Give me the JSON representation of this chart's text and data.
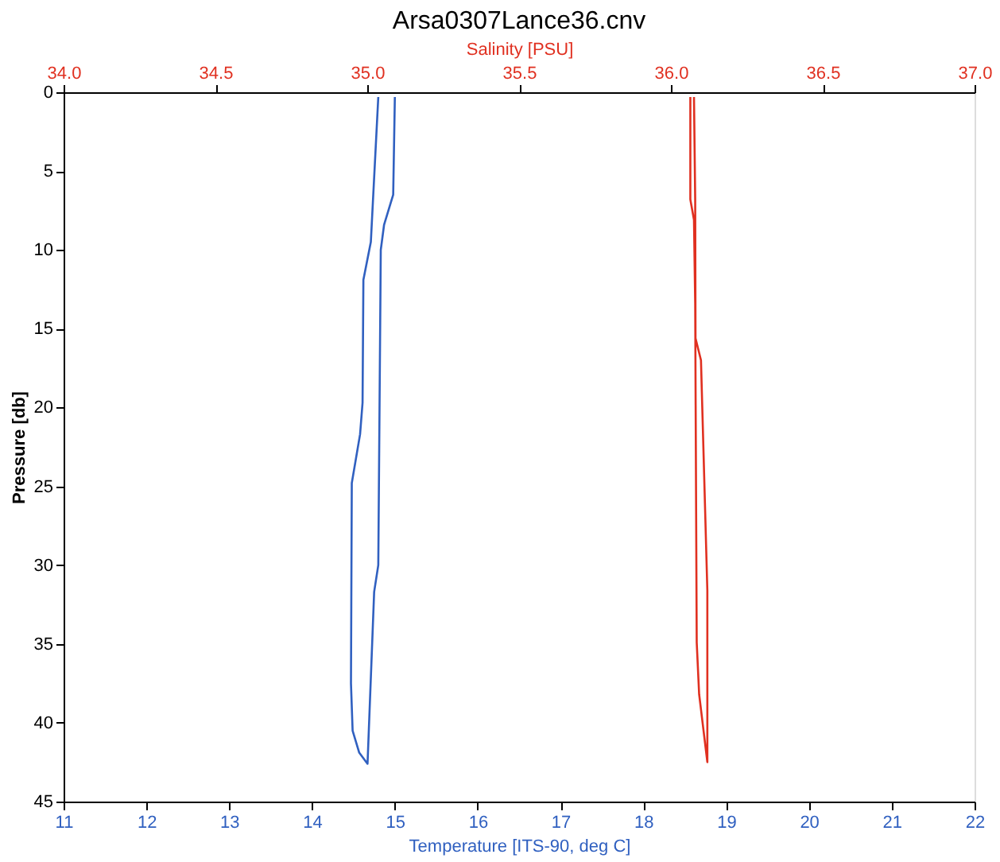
{
  "chart_data": {
    "type": "line",
    "title": "Arsa0307Lance36.cnv",
    "xlabel": "Temperature [ITS-90, deg C]",
    "x2label": "Salinity [PSU]",
    "ylabel": "Pressure [db]",
    "xlim": [
      11,
      22
    ],
    "xticks": [
      11,
      12,
      13,
      14,
      15,
      16,
      17,
      18,
      19,
      20,
      21,
      22
    ],
    "x2lim": [
      34.0,
      37.0
    ],
    "x2ticks": [
      {
        "value": 34.0,
        "label": "34.0"
      },
      34.5,
      {
        "value": 35.0,
        "label": "35.0"
      },
      35.5,
      {
        "value": 36.0,
        "label": "36.0"
      },
      36.5,
      {
        "value": 37.0,
        "label": "37.0"
      }
    ],
    "ylim": [
      45,
      0
    ],
    "yticks": [
      0,
      5,
      10,
      15,
      20,
      25,
      30,
      35,
      40,
      45
    ],
    "grid": false,
    "marker": "none",
    "line_style": "solid",
    "series": [
      {
        "color": "#3060c0",
        "x": [
          15.0,
          14.98,
          14.87,
          14.83,
          14.8,
          14.75,
          14.67,
          14.57,
          14.49,
          14.47,
          14.48,
          14.58,
          14.61,
          14.62,
          14.71,
          14.8
        ],
        "values": [
          0.3,
          6.5,
          8.4,
          10,
          30,
          31.7,
          42.6,
          41.9,
          40.5,
          37.5,
          24.8,
          21.7,
          19.7,
          11.9,
          9.5,
          0.3
        ]
      },
      {
        "color": "#e03020",
        "axis": "x2",
        "x": [
          36.076,
          36.08,
          36.081,
          36.099,
          36.12,
          36.12,
          36.093,
          36.085,
          36.08,
          36.076,
          36.064,
          36.064
        ],
        "values": [
          0.3,
          6.8,
          15.6,
          17,
          31.6,
          42.5,
          38.2,
          34.9,
          13.4,
          8.1,
          6.8,
          0.3
        ]
      }
    ]
  }
}
